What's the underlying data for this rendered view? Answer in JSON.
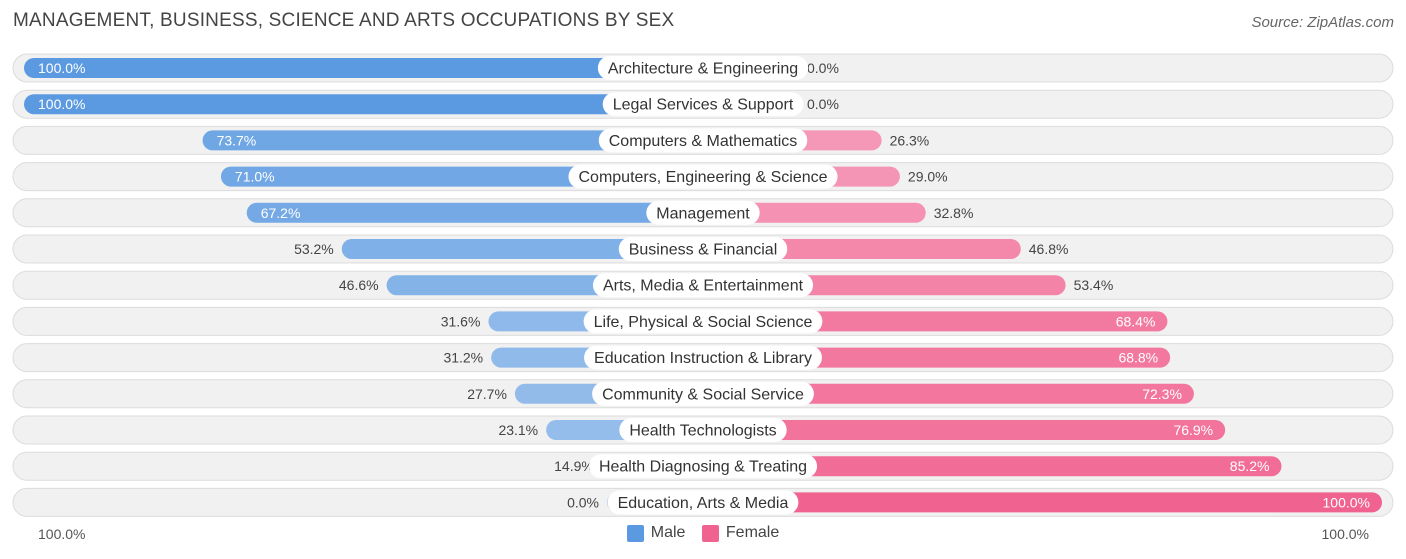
{
  "header": {
    "title": "MANAGEMENT, BUSINESS, SCIENCE AND ARTS OCCUPATIONS BY SEX",
    "source": "Source: ZipAtlas.com"
  },
  "colors": {
    "male_strong": "#5b9ae0",
    "male_light": "#a7c8ee",
    "female_strong": "#f0628f",
    "female_light": "#f7aac4",
    "track": "#f1f1f1",
    "track_border": "#dcdcdc"
  },
  "legend": {
    "male_label": "Male",
    "female_label": "Female"
  },
  "axis": {
    "left_label": "100.0%",
    "right_label": "100.0%"
  },
  "chart_data": {
    "type": "bar",
    "orientation": "horizontal-diverging",
    "title": "MANAGEMENT, BUSINESS, SCIENCE AND ARTS OCCUPATIONS BY SEX",
    "categories": [
      "Architecture & Engineering",
      "Legal Services & Support",
      "Computers & Mathematics",
      "Computers, Engineering & Science",
      "Management",
      "Business & Financial",
      "Arts, Media & Entertainment",
      "Life, Physical & Social Science",
      "Education Instruction & Library",
      "Community & Social Service",
      "Health Technologists",
      "Health Diagnosing & Treating",
      "Education, Arts & Media"
    ],
    "series": [
      {
        "name": "Male",
        "values": [
          100.0,
          100.0,
          73.7,
          71.0,
          67.2,
          53.2,
          46.6,
          31.6,
          31.2,
          27.7,
          23.1,
          14.9,
          0.0
        ],
        "labels": [
          "100.0%",
          "100.0%",
          "73.7%",
          "71.0%",
          "67.2%",
          "53.2%",
          "46.6%",
          "31.6%",
          "31.2%",
          "27.7%",
          "23.1%",
          "14.9%",
          "0.0%"
        ]
      },
      {
        "name": "Female",
        "values": [
          0.0,
          0.0,
          26.3,
          29.0,
          32.8,
          46.8,
          53.4,
          68.4,
          68.8,
          72.3,
          76.9,
          85.2,
          100.0
        ],
        "labels": [
          "0.0%",
          "0.0%",
          "26.3%",
          "29.0%",
          "32.8%",
          "46.8%",
          "53.4%",
          "68.4%",
          "68.8%",
          "72.3%",
          "76.9%",
          "85.2%",
          "100.0%"
        ]
      }
    ],
    "xlim": [
      0,
      100
    ],
    "legend_position": "bottom-center"
  }
}
